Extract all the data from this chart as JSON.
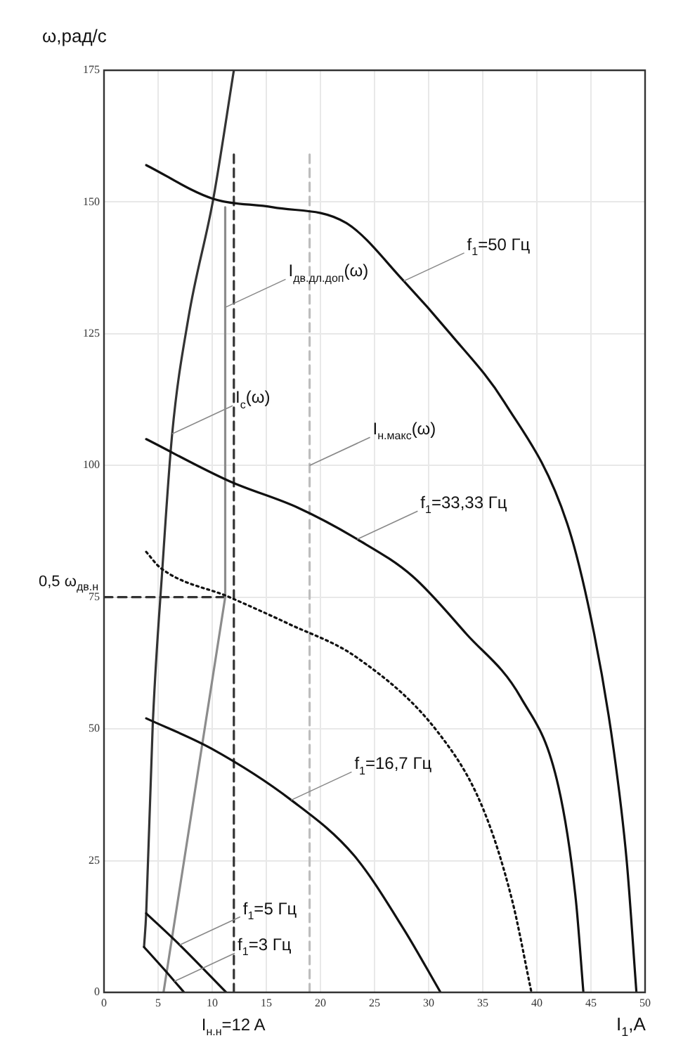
{
  "chart_data": {
    "type": "line",
    "xlabel": "I$_{1}$,A",
    "ylabel": "ω,рад/с",
    "xlim": [
      0,
      50
    ],
    "ylim": [
      0,
      175
    ],
    "xticks": [
      0,
      5,
      10,
      15,
      20,
      25,
      30,
      35,
      40,
      45,
      50
    ],
    "yticks": [
      0,
      25,
      50,
      75,
      100,
      125,
      150,
      175
    ],
    "grid": true,
    "legend": false,
    "marker": "none",
    "series": [
      {
        "color": "#111111",
        "line_style": "solid",
        "x": [
          3.9,
          10.1,
          15.6,
          22.4,
          27.7,
          32,
          37,
          42.8,
          45.3,
          47.1,
          48.3,
          49.2
        ],
        "values": [
          157,
          150.6,
          149,
          146,
          135,
          125,
          112,
          89,
          68,
          46,
          25,
          0
        ]
      },
      {
        "color": "#111111",
        "line_style": "solid",
        "x": [
          3.9,
          11.6,
          17.9,
          23.4,
          28.5,
          33.5,
          38.5,
          42,
          43.6,
          44.3
        ],
        "values": [
          105,
          97,
          92,
          86,
          79,
          68,
          56,
          39,
          17.6,
          0
        ]
      },
      {
        "color": "#111111",
        "line_style": "dotted",
        "x": [
          3.9,
          5.2,
          11.6,
          17,
          23.4,
          31,
          35,
          37.7,
          39.5
        ],
        "values": [
          83.6,
          80.6,
          75,
          70,
          63.5,
          49,
          35,
          17.6,
          0
        ]
      },
      {
        "color": "#111111",
        "line_style": "solid",
        "x": [
          3.9,
          9.9,
          17.3,
          23.1,
          27.7,
          31.1
        ],
        "values": [
          52,
          46.3,
          36.5,
          26,
          12,
          0
        ]
      },
      {
        "color": "#111111",
        "line_style": "solid",
        "x": [
          3.9,
          7,
          11.3
        ],
        "values": [
          15,
          9,
          0
        ]
      },
      {
        "color": "#111111",
        "line_style": "solid",
        "x": [
          3.7,
          5.5,
          7.4
        ],
        "values": [
          8.6,
          4.5,
          0
        ]
      },
      {
        "color": "#333333",
        "line_style": "solid",
        "x": [
          3.7,
          3.9,
          4.5,
          5.4,
          6.3,
          7.8,
          10.1,
          12
        ],
        "values": [
          8.6,
          15,
          50.6,
          80.6,
          106,
          128,
          150.6,
          175
        ]
      },
      {
        "color": "#8c8c8c",
        "line_style": "solid",
        "x": [
          11.2,
          11.2,
          5.5
        ],
        "values": [
          149,
          75,
          0
        ]
      },
      {
        "color": "#333333",
        "line_style": "dashed",
        "x": [
          12,
          12
        ],
        "values": [
          159,
          0
        ]
      },
      {
        "color": "#bdbdbd",
        "line_style": "dashed",
        "x": [
          19,
          19
        ],
        "values": [
          159,
          0
        ]
      },
      {
        "color": "#333333",
        "line_style": "dashed",
        "x": [
          0,
          11.2
        ],
        "values": [
          75,
          75
        ]
      }
    ],
    "annotations": [
      {
        "text": "f$_{1}$=50 Гц",
        "x": 27.7,
        "y": 135
      },
      {
        "text": "f$_{1}$=33,33 Гц",
        "x": 23.4,
        "y": 86
      },
      {
        "text": "f$_{1}$=16,7 Гц",
        "x": 17.3,
        "y": 36.5
      },
      {
        "text": "f$_{1}$=5 Гц",
        "x": 7,
        "y": 9
      },
      {
        "text": "f$_{1}$=3 Гц",
        "x": 6.5,
        "y": 2.1
      },
      {
        "text": "I$_{с}$(ω)",
        "x": 6.3,
        "y": 106
      },
      {
        "text": "I$_{дв.дл.доп}$(ω)",
        "x": 11.2,
        "y": 130
      },
      {
        "text": "I$_{н.макс}$(ω)",
        "x": 19,
        "y": 100
      },
      {
        "text": "I$_{н.н}$=12 A",
        "x": 12,
        "y": 0
      },
      {
        "text": "0,5 ω$_{дв.н}$",
        "x": 0,
        "y": 75
      }
    ]
  }
}
